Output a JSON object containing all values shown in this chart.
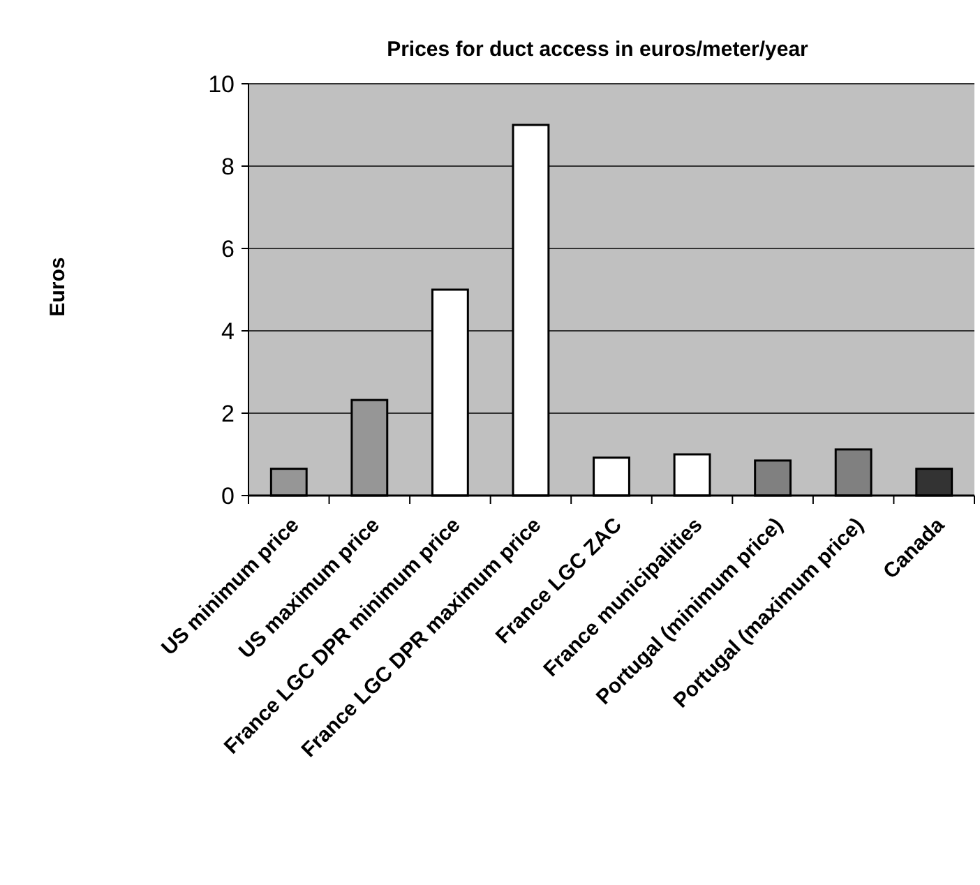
{
  "chart_data": {
    "type": "bar",
    "title": "Prices for duct access in euros/meter/year",
    "ylabel": "Euros",
    "categories": [
      "US minimum price",
      "US maximum price",
      "France LGC DPR minimum price",
      "France LGC DPR maximum price",
      "France LGC ZAC",
      "France municipalities",
      "Portugal (minimum price)",
      "Portugal (maximum price)",
      "Canada"
    ],
    "values": [
      0.65,
      2.32,
      5,
      9,
      0.92,
      1,
      0.85,
      1.12,
      0.65
    ],
    "colors": [
      "#969696",
      "#969696",
      "#ffffff",
      "#ffffff",
      "#ffffff",
      "#ffffff",
      "#808080",
      "#808080",
      "#333333"
    ],
    "ylim": [
      0,
      10
    ],
    "yticks": [
      0,
      2,
      4,
      6,
      8,
      10
    ],
    "grid": "y"
  }
}
